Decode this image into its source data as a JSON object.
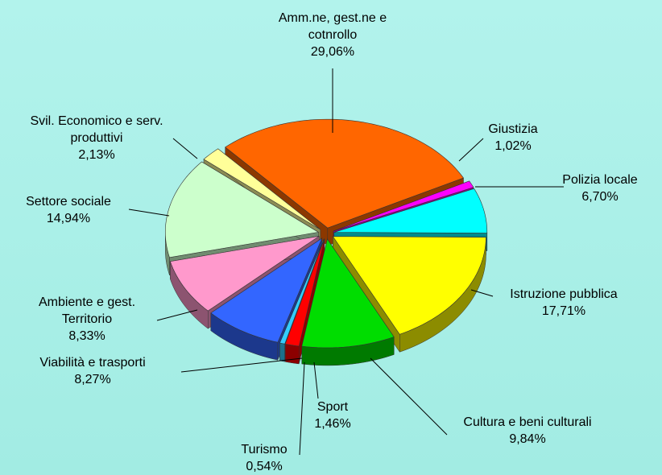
{
  "chart_data": {
    "type": "pie",
    "categories": [
      "Amm.ne, gest.ne e cotnrollo",
      "Giustizia",
      "Polizia locale",
      "Istruzione pubblica",
      "Cultura e beni culturali",
      "Sport",
      "Turismo",
      "Viabilità e trasporti",
      "Ambiente e gest. Territorio",
      "Settore sociale",
      "Svil. Economico e serv. produttivi"
    ],
    "values": [
      29.06,
      1.02,
      6.7,
      17.71,
      9.84,
      1.46,
      0.54,
      8.27,
      8.33,
      14.94,
      2.13
    ],
    "value_labels": [
      "29,06%",
      "1,02%",
      "6,70%",
      "17,71%",
      "9,84%",
      "1,46%",
      "0,54%",
      "8,27%",
      "8,33%",
      "14,94%",
      "2,13%"
    ],
    "colors": [
      "#ff6600",
      "#ff00ff",
      "#00ffff",
      "#ffff00",
      "#00dd00",
      "#ff0000",
      "#33ccff",
      "#3366ff",
      "#ff99cc",
      "#ccffcc",
      "#ffff99"
    ]
  }
}
